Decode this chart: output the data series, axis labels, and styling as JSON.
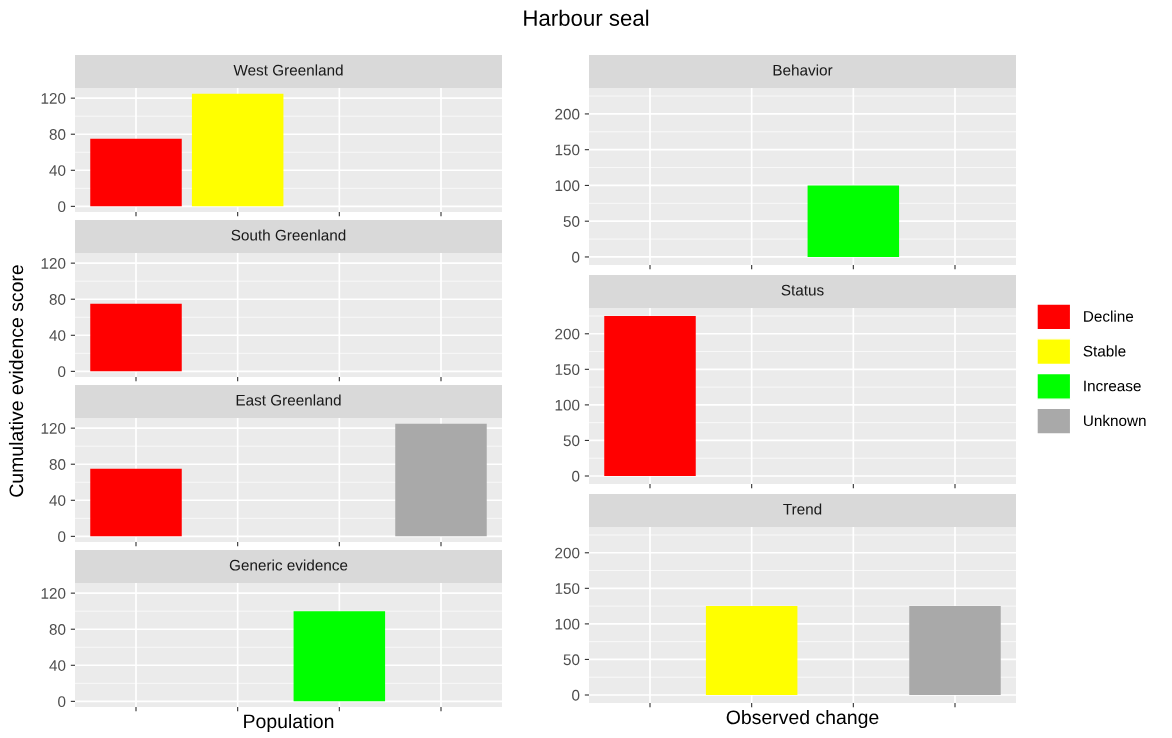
{
  "chart_data": [
    {
      "type": "bar",
      "title": "West Greenland",
      "annotations": [
        "Harbour seal"
      ],
      "categories": [
        null,
        null,
        null,
        null
      ],
      "series": [
        {
          "color": "#ff0000",
          "values": [
            75,
            null,
            null,
            null
          ]
        },
        {
          "color": "#ffff00",
          "values": [
            null,
            125,
            null,
            null
          ]
        }
      ],
      "ylim": [
        -6.25,
        131.25
      ],
      "yticks": [
        0,
        40,
        80,
        120
      ],
      "grid": true,
      "tick_labels": "y"
    },
    {
      "type": "bar",
      "title": "South Greenland",
      "ylabel": "Cumulative evidence score",
      "categories": [
        null,
        null,
        null,
        null
      ],
      "series": [
        {
          "color": "#ff0000",
          "values": [
            75,
            null,
            null,
            null
          ]
        }
      ],
      "ylim": [
        -6.25,
        131.25
      ],
      "yticks": [
        0,
        40,
        80,
        120
      ],
      "grid": true,
      "tick_labels": "y"
    },
    {
      "type": "bar",
      "title": "East Greenland",
      "categories": [
        null,
        null,
        null,
        null
      ],
      "series": [
        {
          "color": "#ff0000",
          "values": [
            75,
            null,
            null,
            null
          ]
        },
        {
          "color": "#a9a9a9",
          "values": [
            null,
            null,
            null,
            125
          ]
        }
      ],
      "ylim": [
        -6.25,
        131.25
      ],
      "yticks": [
        0,
        40,
        80,
        120
      ],
      "grid": true,
      "tick_labels": "y"
    },
    {
      "type": "bar",
      "title": "Generic evidence",
      "xlabel": "Population",
      "categories": [
        null,
        null,
        null,
        null
      ],
      "series": [
        {
          "color": "#00ff00",
          "values": [
            null,
            null,
            100,
            null
          ]
        }
      ],
      "ylim": [
        -6.25,
        131.25
      ],
      "yticks": [
        0,
        40,
        80,
        120
      ],
      "grid": true,
      "tick_labels": "y"
    },
    {
      "type": "bar",
      "title": "Behavior",
      "categories": [
        null,
        null,
        null,
        null
      ],
      "series": [
        {
          "color": "#00ff00",
          "values": [
            null,
            null,
            100,
            null
          ]
        }
      ],
      "ylim": [
        -11.25,
        236.25
      ],
      "yticks": [
        0,
        50,
        100,
        150,
        200
      ],
      "grid": true,
      "tick_labels": "y"
    },
    {
      "type": "bar",
      "title": "Status",
      "legend": "right",
      "categories": [
        null,
        null,
        null,
        null
      ],
      "series": [
        {
          "name": "Decline",
          "color": "#ff0000",
          "values": [
            225,
            null,
            null,
            null
          ]
        },
        {
          "name": "Stable",
          "color": "#ffff00",
          "values": [
            null,
            null,
            null,
            null
          ]
        },
        {
          "name": "Increase",
          "color": "#00ff00",
          "values": [
            null,
            null,
            null,
            null
          ]
        },
        {
          "name": "Unknown",
          "color": "#a9a9a9",
          "values": [
            null,
            null,
            null,
            null
          ]
        }
      ],
      "ylim": [
        -11.25,
        236.25
      ],
      "yticks": [
        0,
        50,
        100,
        150,
        200
      ],
      "grid": true,
      "tick_labels": "y"
    },
    {
      "type": "bar",
      "title": "Trend",
      "xlabel": "Observed change",
      "categories": [
        null,
        null,
        null,
        null
      ],
      "series": [
        {
          "color": "#ffff00",
          "values": [
            null,
            125,
            null,
            null
          ]
        },
        {
          "color": "#a9a9a9",
          "values": [
            null,
            null,
            null,
            125
          ]
        }
      ],
      "ylim": [
        -11.25,
        236.25
      ],
      "yticks": [
        0,
        50,
        100,
        150,
        200
      ],
      "grid": true,
      "tick_labels": "y"
    }
  ]
}
